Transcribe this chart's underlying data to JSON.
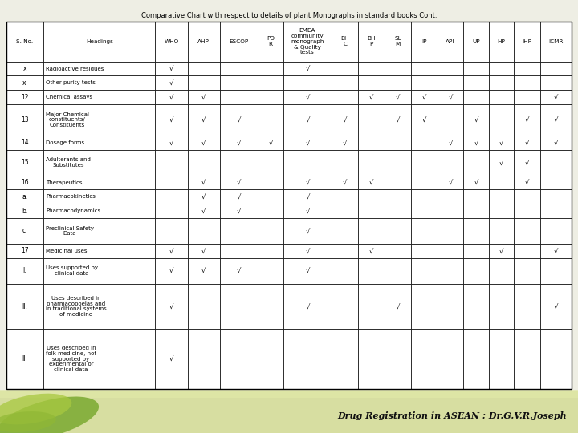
{
  "title": "Comparative Chart with respect to details of plant Monographs in standard books Cont.",
  "footer": "Drug Registration in ASEAN : Dr.G.V.R.Joseph",
  "header_labels": [
    "S. No.",
    "Headings",
    "WHO",
    "AHP",
    "ESCOP",
    "PD\nR",
    "EMEA\ncommunity\nmonograph\n& Quality\ntests",
    "BH\nC",
    "BH\nP",
    "SL\nM",
    "IP",
    "API",
    "UP",
    "HP",
    "IHP",
    "ICMR"
  ],
  "rows": [
    {
      "sno": "x",
      "heading": "Radioactive residues",
      "WHO": 1,
      "AHP": 0,
      "ESCOP": 0,
      "PDR": 0,
      "EMEA": 1,
      "BHC": 0,
      "BHP": 0,
      "SLM": 0,
      "IP": 0,
      "API": 0,
      "UP": 0,
      "HP": 0,
      "IHP": 0,
      "ICMR": 0
    },
    {
      "sno": "xi",
      "heading": "Other purity tests",
      "WHO": 1,
      "AHP": 0,
      "ESCOP": 0,
      "PDR": 0,
      "EMEA": 0,
      "BHC": 0,
      "BHP": 0,
      "SLM": 0,
      "IP": 0,
      "API": 0,
      "UP": 0,
      "HP": 0,
      "IHP": 0,
      "ICMR": 0
    },
    {
      "sno": "12",
      "heading": "Chemical assays",
      "WHO": 1,
      "AHP": 1,
      "ESCOP": 0,
      "PDR": 0,
      "EMEA": 1,
      "BHC": 0,
      "BHP": 1,
      "SLM": 1,
      "IP": 1,
      "API": 1,
      "UP": 0,
      "HP": 0,
      "IHP": 0,
      "ICMR": 1
    },
    {
      "sno": "13",
      "heading": "Major Chemical\nconstituents/\nConstituents",
      "WHO": 1,
      "AHP": 1,
      "ESCOP": 1,
      "PDR": 0,
      "EMEA": 1,
      "BHC": 1,
      "BHP": 0,
      "SLM": 1,
      "IP": 1,
      "API": 0,
      "UP": 1,
      "HP": 0,
      "IHP": 1,
      "ICMR": 1
    },
    {
      "sno": "14",
      "heading": "Dosage forms",
      "WHO": 1,
      "AHP": 1,
      "ESCOP": 1,
      "PDR": 1,
      "EMEA": 1,
      "BHC": 1,
      "BHP": 0,
      "SLM": 0,
      "IP": 0,
      "API": 1,
      "UP": 1,
      "HP": 1,
      "IHP": 1,
      "ICMR": 1
    },
    {
      "sno": "15",
      "heading": "Adulterants and\nSubstitutes",
      "WHO": 0,
      "AHP": 0,
      "ESCOP": 0,
      "PDR": 0,
      "EMEA": 0,
      "BHC": 0,
      "BHP": 0,
      "SLM": 0,
      "IP": 0,
      "API": 0,
      "UP": 0,
      "HP": 1,
      "IHP": 1,
      "ICMR": 0
    },
    {
      "sno": "16",
      "heading": "Therapeutics",
      "WHO": 0,
      "AHP": 1,
      "ESCOP": 1,
      "PDR": 0,
      "EMEA": 1,
      "BHC": 1,
      "BHP": 1,
      "SLM": 0,
      "IP": 0,
      "API": 1,
      "UP": 1,
      "HP": 0,
      "IHP": 1,
      "ICMR": 0
    },
    {
      "sno": "a.",
      "heading": "Pharmacokinetics",
      "WHO": 0,
      "AHP": 1,
      "ESCOP": 1,
      "PDR": 0,
      "EMEA": 1,
      "BHC": 0,
      "BHP": 0,
      "SLM": 0,
      "IP": 0,
      "API": 0,
      "UP": 0,
      "HP": 0,
      "IHP": 0,
      "ICMR": 0
    },
    {
      "sno": "b.",
      "heading": "Pharmacodynamics",
      "WHO": 0,
      "AHP": 1,
      "ESCOP": 1,
      "PDR": 0,
      "EMEA": 1,
      "BHC": 0,
      "BHP": 0,
      "SLM": 0,
      "IP": 0,
      "API": 0,
      "UP": 0,
      "HP": 0,
      "IHP": 0,
      "ICMR": 0
    },
    {
      "sno": "c.",
      "heading": "Preclinical Safety\nData",
      "WHO": 0,
      "AHP": 0,
      "ESCOP": 0,
      "PDR": 0,
      "EMEA": 1,
      "BHC": 0,
      "BHP": 0,
      "SLM": 0,
      "IP": 0,
      "API": 0,
      "UP": 0,
      "HP": 0,
      "IHP": 0,
      "ICMR": 0
    },
    {
      "sno": "17",
      "heading": "Medicinal uses",
      "WHO": 1,
      "AHP": 1,
      "ESCOP": 0,
      "PDR": 0,
      "EMEA": 1,
      "BHC": 0,
      "BHP": 1,
      "SLM": 0,
      "IP": 0,
      "API": 0,
      "UP": 0,
      "HP": 1,
      "IHP": 0,
      "ICMR": 1
    },
    {
      "sno": "I.",
      "heading": "Uses supported by\nclinical data",
      "WHO": 1,
      "AHP": 1,
      "ESCOP": 1,
      "PDR": 0,
      "EMEA": 1,
      "BHC": 0,
      "BHP": 0,
      "SLM": 0,
      "IP": 0,
      "API": 0,
      "UP": 0,
      "HP": 0,
      "IHP": 0,
      "ICMR": 0
    },
    {
      "sno": "II.",
      "heading": "Uses described in\npharmacopoeias and\nin traditional systems\nof medicine",
      "WHO": 1,
      "AHP": 0,
      "ESCOP": 0,
      "PDR": 0,
      "EMEA": 1,
      "BHC": 0,
      "BHP": 0,
      "SLM": 1,
      "IP": 0,
      "API": 0,
      "UP": 0,
      "HP": 0,
      "IHP": 0,
      "ICMR": 1
    },
    {
      "sno": "III",
      "heading": "Uses described in\nfolk medicine, not\nsupported by\nexperimental or\nclinical data",
      "WHO": 1,
      "AHP": 0,
      "ESCOP": 0,
      "PDR": 0,
      "EMEA": 0,
      "BHC": 0,
      "BHP": 0,
      "SLM": 0,
      "IP": 0,
      "API": 0,
      "UP": 0,
      "HP": 0,
      "IHP": 0,
      "ICMR": 0
    }
  ],
  "col_keys": [
    "WHO",
    "AHP",
    "ESCOP",
    "PDR",
    "EMEA",
    "BHC",
    "BHP",
    "SLM",
    "IP",
    "API",
    "UP",
    "HP",
    "IHP",
    "ICMR"
  ],
  "bg_color": "#eeeee4",
  "check": "√",
  "col_props": [
    0.056,
    0.17,
    0.049,
    0.049,
    0.058,
    0.038,
    0.074,
    0.04,
    0.04,
    0.04,
    0.04,
    0.04,
    0.038,
    0.038,
    0.04,
    0.048
  ],
  "row_units": [
    1.0,
    1.0,
    1.0,
    2.2,
    1.0,
    1.8,
    1.0,
    1.0,
    1.0,
    1.8,
    1.0,
    1.8,
    3.2,
    4.2
  ],
  "header_units": 2.8
}
